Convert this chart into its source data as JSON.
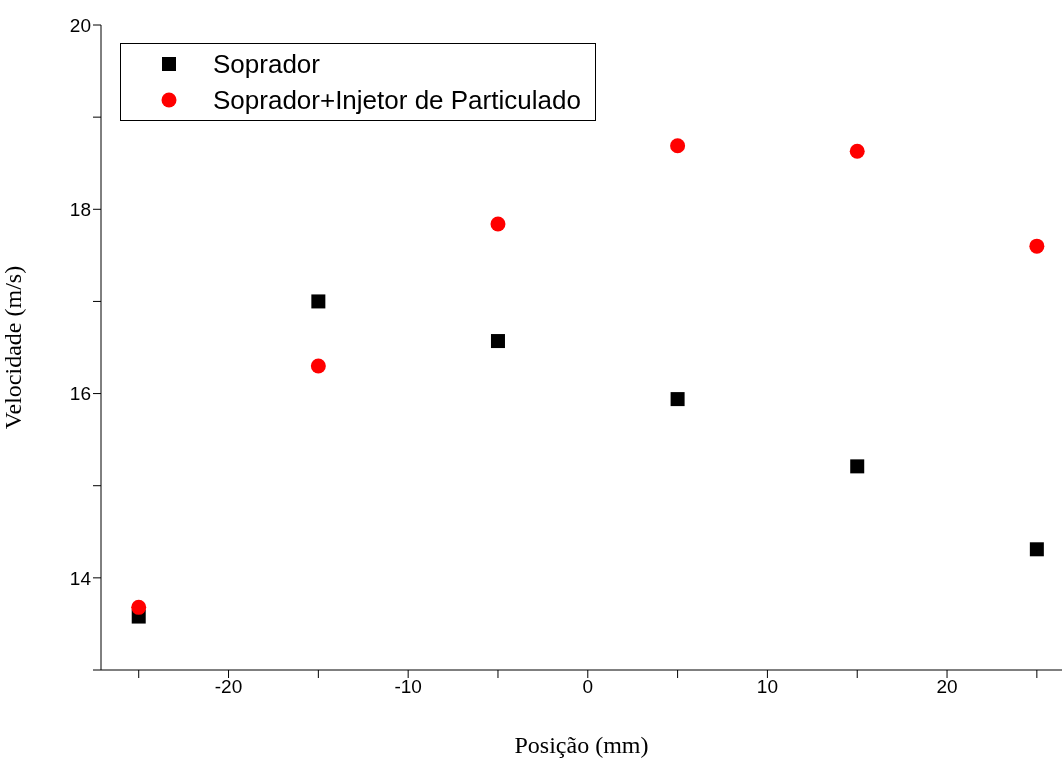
{
  "chart_data": {
    "type": "scatter",
    "xlabel": "Posição (mm)",
    "ylabel": "Velocidade (m/s)",
    "x": [
      -25,
      -15,
      -5,
      5,
      15,
      25
    ],
    "series": [
      {
        "name": "Soprador",
        "color": "#000000",
        "marker": "square",
        "values": [
          13.58,
          17.0,
          16.57,
          15.94,
          15.21,
          14.31
        ]
      },
      {
        "name": "Soprador+Injetor de Particulado",
        "color": "#ff0000",
        "marker": "circle",
        "values": [
          13.68,
          16.3,
          17.84,
          18.69,
          18.63,
          17.6
        ]
      }
    ],
    "xlim": [
      -27.1,
      26.4
    ],
    "xticks": [
      {
        "value": -25,
        "label": null
      },
      -20,
      {
        "value": -15,
        "label": null
      },
      -10,
      {
        "value": -5,
        "label": null
      },
      0,
      {
        "value": 5,
        "label": null
      },
      10,
      {
        "value": 15,
        "label": null
      },
      20,
      {
        "value": 25,
        "label": null
      }
    ],
    "ylim": [
      13,
      20
    ],
    "yticks": [
      {
        "value": 13,
        "label": null
      },
      14,
      {
        "value": 15,
        "label": null
      },
      16,
      {
        "value": 17,
        "label": null
      },
      18,
      {
        "value": 19,
        "label": null
      },
      20
    ],
    "grid": false,
    "legend": "top left"
  }
}
